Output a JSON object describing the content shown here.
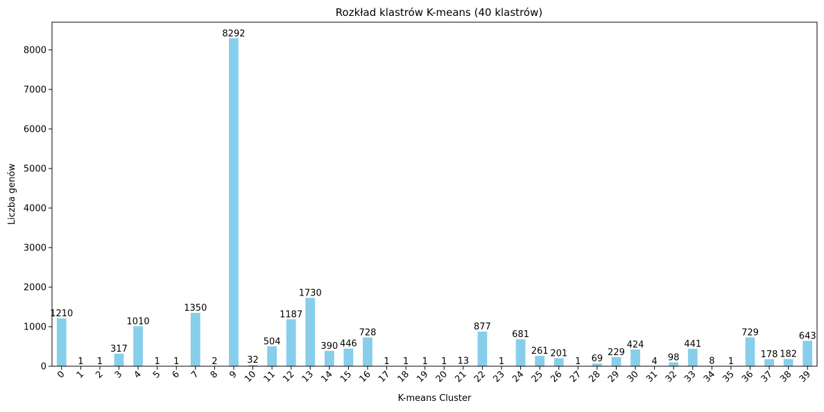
{
  "chart_data": {
    "type": "bar",
    "title": "Rozkład klastrów K-means (40 klastrów)",
    "xlabel": "K-means Cluster",
    "ylabel": "Liczba genów",
    "ylim": [
      0,
      8700
    ],
    "yticks": [
      0,
      1000,
      2000,
      3000,
      4000,
      5000,
      6000,
      7000,
      8000
    ],
    "bar_color": "#87ceeb",
    "grid": false,
    "categories": [
      "0",
      "1",
      "2",
      "3",
      "4",
      "5",
      "6",
      "7",
      "8",
      "9",
      "10",
      "11",
      "12",
      "13",
      "14",
      "15",
      "16",
      "17",
      "18",
      "19",
      "20",
      "21",
      "22",
      "23",
      "24",
      "25",
      "26",
      "27",
      "28",
      "29",
      "30",
      "31",
      "32",
      "33",
      "34",
      "35",
      "36",
      "37",
      "38",
      "39"
    ],
    "values": [
      1210,
      1,
      1,
      317,
      1010,
      1,
      1,
      1350,
      2,
      8292,
      32,
      504,
      1187,
      1730,
      390,
      446,
      728,
      1,
      1,
      1,
      1,
      13,
      877,
      1,
      681,
      261,
      201,
      1,
      69,
      229,
      424,
      4,
      98,
      441,
      8,
      1,
      729,
      178,
      182,
      643
    ]
  }
}
